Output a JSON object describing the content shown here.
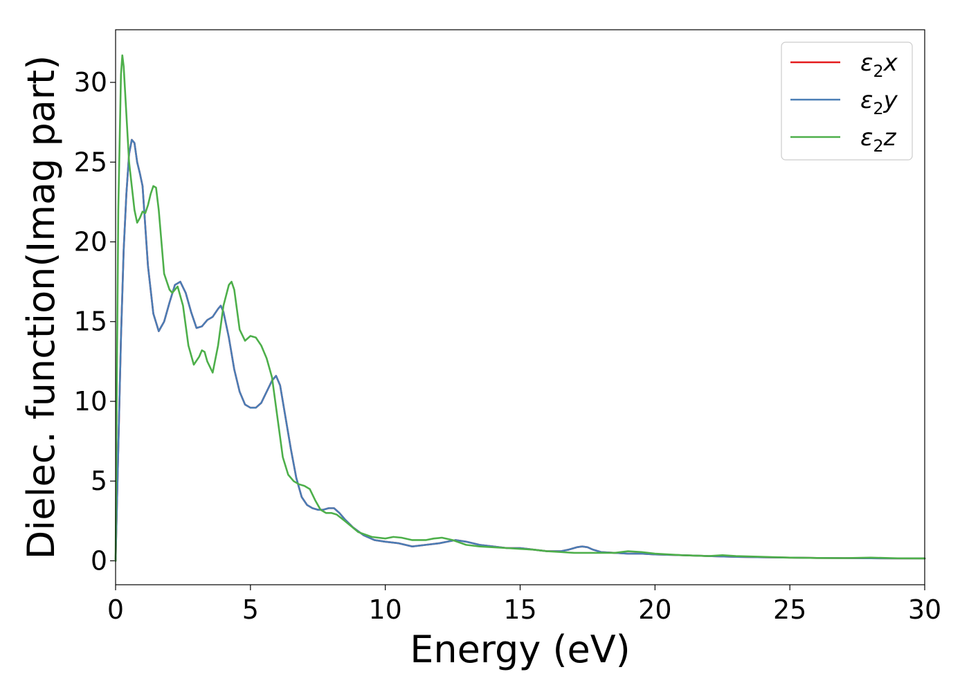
{
  "chart_data": {
    "type": "line",
    "xlabel": "Energy (eV)",
    "ylabel": "Dielec. function(Imag part)",
    "xlim": [
      0,
      30
    ],
    "ylim": [
      -1.5,
      33.3
    ],
    "xticks": [
      0,
      5,
      10,
      15,
      20,
      25,
      30
    ],
    "yticks": [
      0,
      5,
      10,
      15,
      20,
      25,
      30
    ],
    "grid": false,
    "legend_position": "top-right",
    "series": [
      {
        "name": "ε₂x",
        "legend_base": "ε",
        "legend_sub": "2",
        "legend_var": "x",
        "color": "#e41a1c",
        "x": [
          0,
          0.1,
          0.2,
          0.3,
          0.4,
          0.5,
          0.6,
          0.7,
          0.8,
          0.9,
          1.0,
          1.1,
          1.2,
          1.4,
          1.6,
          1.8,
          2.0,
          2.2,
          2.4,
          2.6,
          2.8,
          3.0,
          3.2,
          3.4,
          3.6,
          3.8,
          3.9,
          4.0,
          4.2,
          4.4,
          4.6,
          4.8,
          5.0,
          5.2,
          5.4,
          5.6,
          5.8,
          5.95,
          6.1,
          6.3,
          6.5,
          6.7,
          6.9,
          7.1,
          7.3,
          7.5,
          7.7,
          7.9,
          8.1,
          8.3,
          8.5,
          8.8,
          9.2,
          9.6,
          10.0,
          10.5,
          11.0,
          11.5,
          12.0,
          12.3,
          12.6,
          13.0,
          13.5,
          14.0,
          14.5,
          15.0,
          15.5,
          16.0,
          16.5,
          16.8,
          17.1,
          17.3,
          17.5,
          17.7,
          18.0,
          18.5,
          19.0,
          19.5,
          20.0,
          21.0,
          22.0,
          23.0,
          24.0,
          25.0,
          26.0,
          27.0,
          28.0,
          29.0,
          30.0
        ],
        "values": [
          0,
          7.0,
          14.0,
          19.5,
          23.0,
          25.5,
          26.4,
          26.2,
          25.0,
          24.3,
          23.5,
          21.0,
          18.5,
          15.5,
          14.4,
          15.0,
          16.2,
          17.3,
          17.5,
          16.8,
          15.6,
          14.6,
          14.7,
          15.1,
          15.3,
          15.8,
          16.0,
          15.6,
          14.0,
          12.0,
          10.6,
          9.8,
          9.6,
          9.6,
          9.9,
          10.6,
          11.3,
          11.6,
          11.0,
          9.0,
          7.0,
          5.2,
          4.0,
          3.5,
          3.3,
          3.2,
          3.2,
          3.3,
          3.3,
          3.0,
          2.6,
          2.1,
          1.6,
          1.3,
          1.2,
          1.1,
          0.9,
          1.0,
          1.1,
          1.2,
          1.3,
          1.2,
          1.0,
          0.9,
          0.8,
          0.8,
          0.7,
          0.6,
          0.6,
          0.7,
          0.85,
          0.9,
          0.85,
          0.7,
          0.55,
          0.5,
          0.45,
          0.45,
          0.4,
          0.35,
          0.3,
          0.25,
          0.22,
          0.2,
          0.18,
          0.17,
          0.16,
          0.15,
          0.15
        ]
      },
      {
        "name": "ε₂y",
        "legend_base": "ε",
        "legend_sub": "2",
        "legend_var": "y",
        "color": "#4a7db5",
        "x": [
          0,
          0.1,
          0.2,
          0.3,
          0.4,
          0.5,
          0.6,
          0.7,
          0.8,
          0.9,
          1.0,
          1.1,
          1.2,
          1.4,
          1.6,
          1.8,
          2.0,
          2.2,
          2.4,
          2.6,
          2.8,
          3.0,
          3.2,
          3.4,
          3.6,
          3.8,
          3.9,
          4.0,
          4.2,
          4.4,
          4.6,
          4.8,
          5.0,
          5.2,
          5.4,
          5.6,
          5.8,
          5.95,
          6.1,
          6.3,
          6.5,
          6.7,
          6.9,
          7.1,
          7.3,
          7.5,
          7.7,
          7.9,
          8.1,
          8.3,
          8.5,
          8.8,
          9.2,
          9.6,
          10.0,
          10.5,
          11.0,
          11.5,
          12.0,
          12.3,
          12.6,
          13.0,
          13.5,
          14.0,
          14.5,
          15.0,
          15.5,
          16.0,
          16.5,
          16.8,
          17.1,
          17.3,
          17.5,
          17.7,
          18.0,
          18.5,
          19.0,
          19.5,
          20.0,
          21.0,
          22.0,
          23.0,
          24.0,
          25.0,
          26.0,
          27.0,
          28.0,
          29.0,
          30.0
        ],
        "values": [
          0,
          7.0,
          14.0,
          19.5,
          23.0,
          25.5,
          26.4,
          26.2,
          25.0,
          24.3,
          23.5,
          21.0,
          18.5,
          15.5,
          14.4,
          15.0,
          16.2,
          17.3,
          17.5,
          16.8,
          15.6,
          14.6,
          14.7,
          15.1,
          15.3,
          15.8,
          16.0,
          15.6,
          14.0,
          12.0,
          10.6,
          9.8,
          9.6,
          9.6,
          9.9,
          10.6,
          11.3,
          11.6,
          11.0,
          9.0,
          7.0,
          5.2,
          4.0,
          3.5,
          3.3,
          3.2,
          3.2,
          3.3,
          3.3,
          3.0,
          2.6,
          2.1,
          1.6,
          1.3,
          1.2,
          1.1,
          0.9,
          1.0,
          1.1,
          1.2,
          1.3,
          1.2,
          1.0,
          0.9,
          0.8,
          0.8,
          0.7,
          0.6,
          0.6,
          0.7,
          0.85,
          0.9,
          0.85,
          0.7,
          0.55,
          0.5,
          0.45,
          0.45,
          0.4,
          0.35,
          0.3,
          0.25,
          0.22,
          0.2,
          0.18,
          0.17,
          0.16,
          0.15,
          0.15
        ]
      },
      {
        "name": "ε₂z",
        "legend_base": "ε",
        "legend_sub": "2",
        "legend_var": "z",
        "color": "#4daf4a",
        "x": [
          0,
          0.05,
          0.1,
          0.2,
          0.25,
          0.3,
          0.4,
          0.5,
          0.6,
          0.7,
          0.8,
          0.9,
          1.0,
          1.1,
          1.2,
          1.3,
          1.4,
          1.5,
          1.6,
          1.8,
          2.0,
          2.1,
          2.3,
          2.5,
          2.7,
          2.9,
          3.1,
          3.2,
          3.3,
          3.4,
          3.6,
          3.8,
          4.0,
          4.2,
          4.3,
          4.4,
          4.6,
          4.8,
          5.0,
          5.2,
          5.4,
          5.6,
          5.8,
          6.0,
          6.2,
          6.4,
          6.6,
          6.8,
          7.0,
          7.2,
          7.4,
          7.6,
          7.8,
          8.0,
          8.2,
          8.5,
          9.0,
          9.5,
          10.0,
          10.3,
          10.6,
          11.0,
          11.5,
          11.8,
          12.1,
          12.5,
          13.0,
          13.5,
          14.0,
          14.5,
          15.0,
          15.5,
          16.0,
          16.5,
          17.0,
          17.5,
          18.0,
          18.5,
          19.0,
          19.5,
          20.0,
          21.0,
          22.0,
          22.5,
          23.0,
          24.0,
          25.0,
          26.0,
          27.0,
          28.0,
          29.0,
          30.0
        ],
        "values": [
          0,
          12.0,
          22.0,
          30.5,
          31.7,
          31.0,
          28.0,
          25.0,
          23.5,
          22.0,
          21.2,
          21.5,
          21.9,
          21.8,
          22.3,
          23.0,
          23.5,
          23.4,
          22.0,
          18.0,
          17.0,
          16.8,
          17.2,
          16.0,
          13.5,
          12.3,
          12.8,
          13.2,
          13.1,
          12.5,
          11.8,
          13.5,
          16.0,
          17.3,
          17.5,
          17.0,
          14.5,
          13.8,
          14.1,
          14.0,
          13.5,
          12.7,
          11.5,
          9.0,
          6.5,
          5.4,
          5.0,
          4.8,
          4.7,
          4.5,
          3.8,
          3.2,
          3.0,
          3.0,
          2.9,
          2.5,
          1.8,
          1.5,
          1.4,
          1.5,
          1.45,
          1.3,
          1.3,
          1.4,
          1.45,
          1.3,
          1.0,
          0.9,
          0.85,
          0.8,
          0.75,
          0.7,
          0.6,
          0.55,
          0.5,
          0.5,
          0.5,
          0.5,
          0.6,
          0.55,
          0.45,
          0.35,
          0.3,
          0.35,
          0.3,
          0.25,
          0.2,
          0.18,
          0.17,
          0.2,
          0.16,
          0.15
        ]
      }
    ]
  }
}
